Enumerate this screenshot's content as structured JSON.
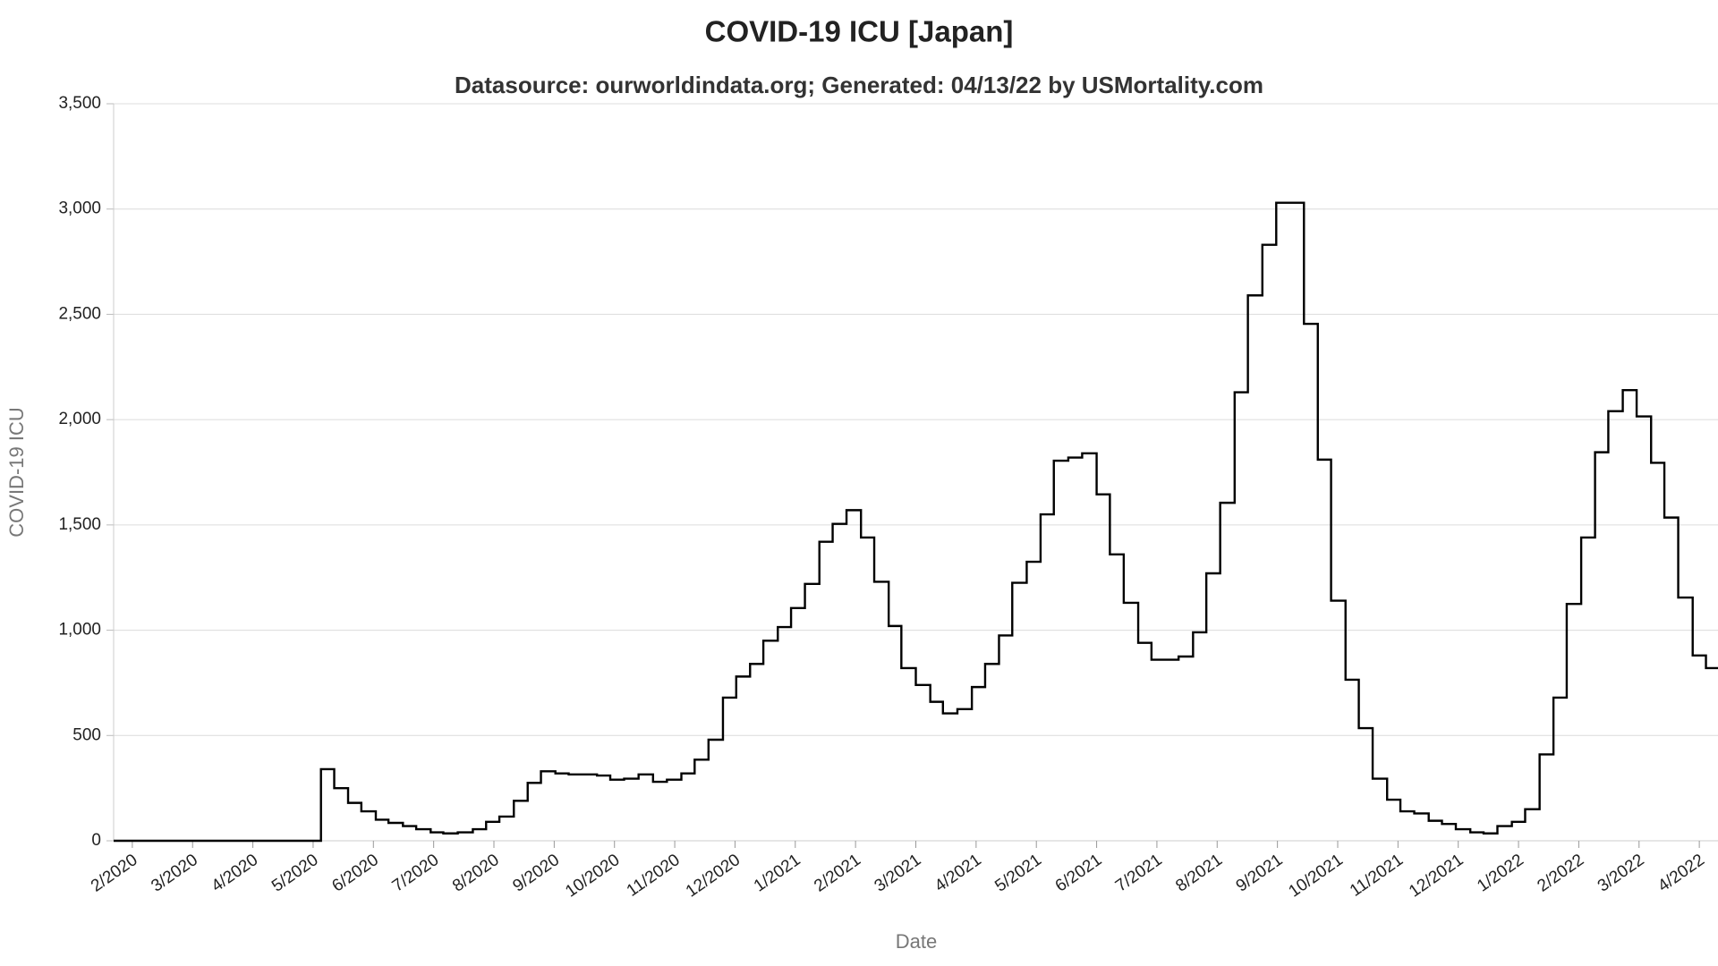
{
  "chart_data": {
    "type": "line",
    "step": true,
    "title": "COVID-19 ICU [Japan]",
    "subtitle": "Datasource: ourworldindata.org; Generated: 04/13/22 by USMortality.com",
    "x_label": "Date",
    "y_label": "COVID-19 ICU",
    "grid": true,
    "xlim": [
      -0.31,
      26.31
    ],
    "xticks": [
      {
        "value": 0,
        "label": "2/2020"
      },
      {
        "value": 1,
        "label": "3/2020"
      },
      {
        "value": 2,
        "label": "4/2020"
      },
      {
        "value": 3,
        "label": "5/2020"
      },
      {
        "value": 4,
        "label": "6/2020"
      },
      {
        "value": 5,
        "label": "7/2020"
      },
      {
        "value": 6,
        "label": "8/2020"
      },
      {
        "value": 7,
        "label": "9/2020"
      },
      {
        "value": 8,
        "label": "10/2020"
      },
      {
        "value": 9,
        "label": "11/2020"
      },
      {
        "value": 10,
        "label": "12/2020"
      },
      {
        "value": 11,
        "label": "1/2021"
      },
      {
        "value": 12,
        "label": "2/2021"
      },
      {
        "value": 13,
        "label": "3/2021"
      },
      {
        "value": 14,
        "label": "4/2021"
      },
      {
        "value": 15,
        "label": "5/2021"
      },
      {
        "value": 16,
        "label": "6/2021"
      },
      {
        "value": 17,
        "label": "7/2021"
      },
      {
        "value": 18,
        "label": "8/2021"
      },
      {
        "value": 19,
        "label": "9/2021"
      },
      {
        "value": 20,
        "label": "10/2021"
      },
      {
        "value": 21,
        "label": "11/2021"
      },
      {
        "value": 22,
        "label": "12/2021"
      },
      {
        "value": 23,
        "label": "1/2022"
      },
      {
        "value": 24,
        "label": "2/2022"
      },
      {
        "value": 25,
        "label": "3/2022"
      },
      {
        "value": 26,
        "label": "4/2022"
      }
    ],
    "ylim": [
      0,
      3500
    ],
    "yticks": [
      0,
      500,
      {
        "value": 1000,
        "label": "1,000"
      },
      {
        "value": 1500,
        "label": "1,500"
      },
      {
        "value": 2000,
        "label": "2,000"
      },
      {
        "value": 2500,
        "label": "2,500"
      },
      {
        "value": 3000,
        "label": "3,000"
      },
      {
        "value": 3500,
        "label": "3,500"
      }
    ],
    "x": [
      -0.31,
      3.13,
      3.35,
      3.58,
      3.8,
      4.04,
      4.25,
      4.49,
      4.71,
      4.95,
      5.16,
      5.4,
      5.65,
      5.87,
      6.09,
      6.33,
      6.56,
      6.78,
      7.02,
      7.24,
      7.71,
      7.93,
      8.16,
      8.4,
      8.64,
      8.87,
      9.11,
      9.33,
      9.56,
      9.8,
      10.02,
      10.25,
      10.47,
      10.71,
      10.93,
      11.16,
      11.4,
      11.62,
      11.85,
      12.09,
      12.31,
      12.55,
      12.76,
      13.0,
      13.24,
      13.45,
      13.69,
      13.93,
      14.15,
      14.38,
      14.6,
      14.84,
      15.07,
      15.29,
      15.53,
      15.76,
      16.0,
      16.22,
      16.45,
      16.69,
      16.91,
      17.36,
      17.6,
      17.82,
      18.05,
      18.29,
      18.51,
      18.75,
      18.98,
      19.44,
      19.67,
      19.89,
      20.13,
      20.35,
      20.58,
      20.82,
      21.04,
      21.27,
      21.51,
      21.73,
      21.96,
      22.2,
      22.42,
      22.65,
      22.89,
      23.11,
      23.35,
      23.58,
      23.8,
      24.04,
      24.27,
      24.49,
      24.73,
      24.96,
      25.2,
      25.42,
      25.65,
      25.89,
      26.11
    ],
    "series": [
      {
        "color": "#000000",
        "values": [
          0,
          340,
          250,
          180,
          140,
          100,
          85,
          70,
          55,
          40,
          35,
          40,
          55,
          90,
          115,
          190,
          275,
          330,
          320,
          315,
          310,
          290,
          295,
          315,
          280,
          290,
          320,
          385,
          480,
          680,
          780,
          840,
          950,
          1015,
          1105,
          1220,
          1420,
          1505,
          1570,
          1440,
          1230,
          1020,
          820,
          740,
          660,
          605,
          625,
          730,
          840,
          975,
          1225,
          1325,
          1550,
          1805,
          1820,
          1840,
          1645,
          1360,
          1130,
          940,
          860,
          875,
          990,
          1270,
          1605,
          2130,
          2590,
          2830,
          3030,
          2455,
          1810,
          1140,
          765,
          535,
          295,
          195,
          140,
          130,
          95,
          80,
          55,
          40,
          35,
          70,
          90,
          150,
          410,
          680,
          1125,
          1440,
          1845,
          2040,
          2140,
          2015,
          1795,
          1535,
          1155,
          880,
          820
        ]
      }
    ]
  }
}
